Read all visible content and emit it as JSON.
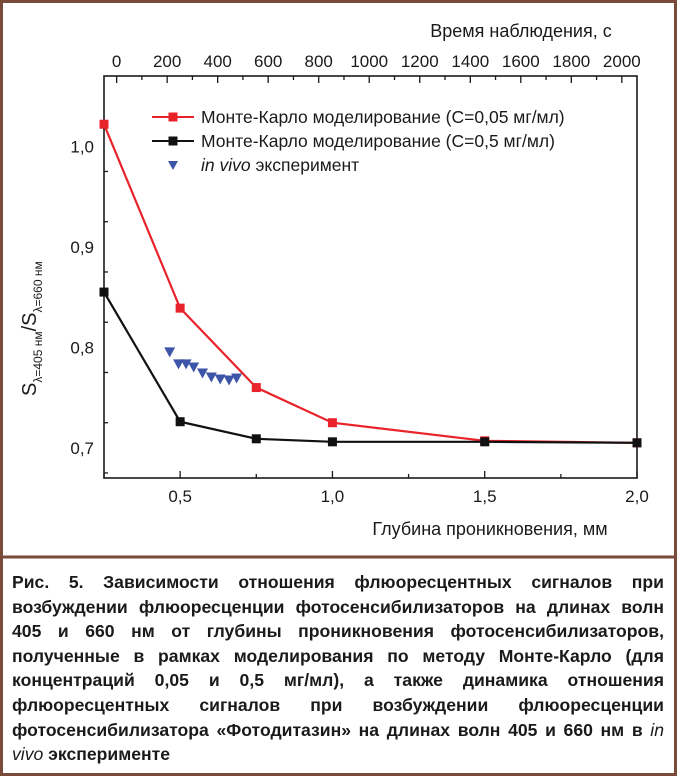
{
  "chart_data": {
    "type": "line",
    "xlabel": "Глубина проникновения, мм",
    "x2label": "Время наблюдения, с",
    "ylabel_main": "S",
    "ylabel_sub1": "λ=405 нм",
    "ylabel_slash": "/S",
    "ylabel_sub2": "λ=660 нм",
    "xlim": [
      0.25,
      2.0
    ],
    "ylim": [
      0.67,
      1.07
    ],
    "x2lim": [
      -50,
      2060
    ],
    "x_ticks": [
      "0,5",
      "1,0",
      "1,5",
      "2,0"
    ],
    "x_tick_values": [
      0.5,
      1.0,
      1.5,
      2.0
    ],
    "y_ticks": [
      "0,7",
      "0,8",
      "0,9",
      "1,0"
    ],
    "y_tick_values": [
      0.7,
      0.8,
      0.9,
      1.0
    ],
    "x2_ticks": [
      "0",
      "200",
      "400",
      "600",
      "800",
      "1000",
      "1200",
      "1400",
      "1600",
      "1800",
      "2000"
    ],
    "x2_tick_values": [
      0,
      200,
      400,
      600,
      800,
      1000,
      1200,
      1400,
      1600,
      1800,
      2000
    ],
    "legend_position": "top-right",
    "series": [
      {
        "name": "Монте-Карло моделирование (С=0,05 мг/мл)",
        "color": "#e8232a",
        "marker": "square",
        "line": true,
        "x": [
          0.25,
          0.5,
          0.75,
          1.0,
          1.5,
          2.0
        ],
        "y": [
          1.022,
          0.839,
          0.76,
          0.725,
          0.707,
          0.705
        ]
      },
      {
        "name": "Монте-Карло моделирование (С=0,5 мг/мл)",
        "color": "#111111",
        "marker": "square",
        "line": true,
        "x": [
          0.25,
          0.5,
          0.75,
          1.0,
          1.5,
          2.0
        ],
        "y": [
          0.855,
          0.726,
          0.709,
          0.706,
          0.706,
          0.705
        ]
      },
      {
        "name_italic": "in vivo",
        "name_rest": " эксперимент",
        "color": "#3d55a8",
        "marker": "triangle-down",
        "line": false,
        "x_axis": "top",
        "x": [
          210,
          245,
          275,
          305,
          340,
          375,
          410,
          445,
          475
        ],
        "y": [
          0.795,
          0.783,
          0.783,
          0.78,
          0.774,
          0.77,
          0.768,
          0.767,
          0.769
        ]
      }
    ]
  },
  "caption": {
    "part1": "Рис. 5. Зависимости отношения флюоресцентных сигналов при возбуждении флюоресценции фотосенсибилизаторов на длинах волн 405 и 660 нм от глубины проникновения фотосенсибилизаторов, полученные в рамках моделирования по методу Монте-Карло (для концентраций 0,05 и 0,5 мг/мл), а также динамика отношения флюоресцентных сигналов при возбуждении флюоресценции фотосенсибилизатора «Фотодитазин» на длинах волн 405 и 660 нм в ",
    "italic": "in vivo",
    "part2": " эксперименте"
  },
  "colors": {
    "frame": "#7a4a3a",
    "axis": "#1a1a1a"
  }
}
